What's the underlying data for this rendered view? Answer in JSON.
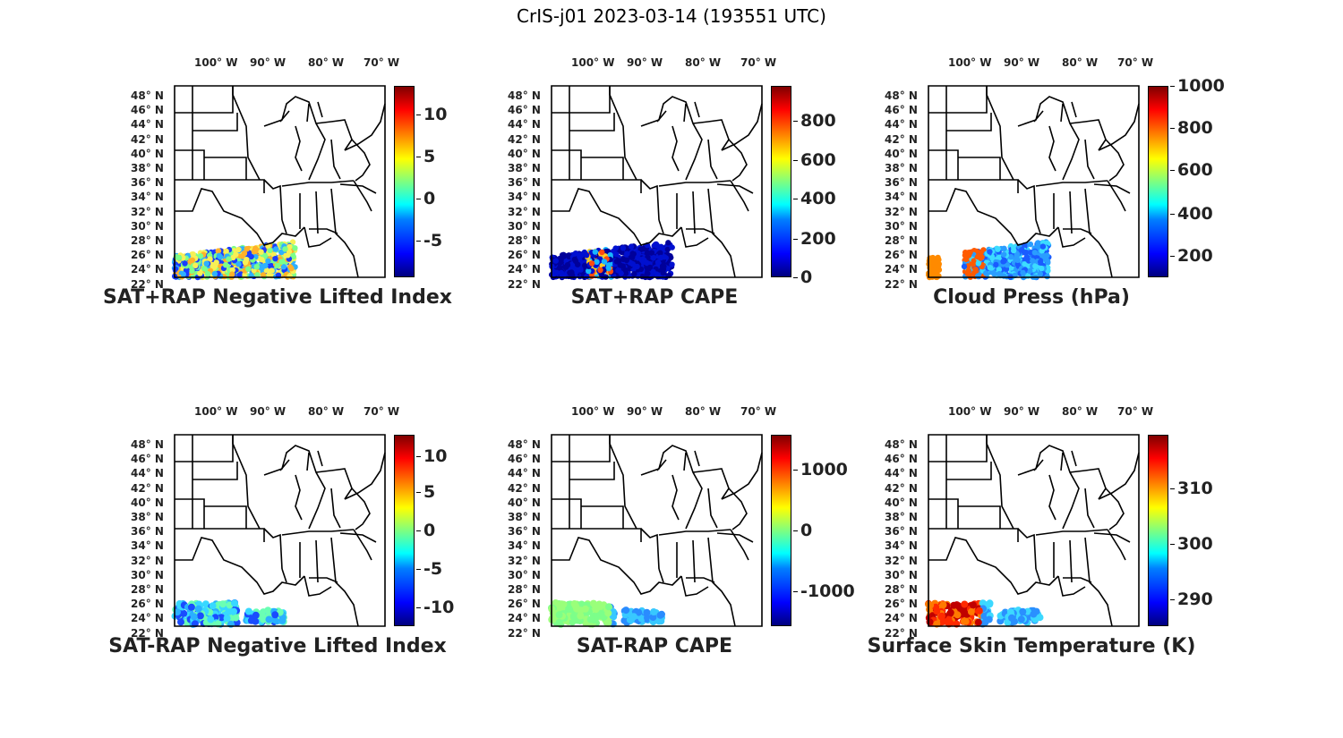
{
  "figure": {
    "title": "CrIS-j01 2023-03-14 (193551 UTC)"
  },
  "lon_labels": [
    "100° W",
    "90° W",
    "80° W",
    "70° W"
  ],
  "lat_labels": [
    "48° N",
    "46° N",
    "44° N",
    "42° N",
    "40° N",
    "38° N",
    "36° N",
    "34° N",
    "32° N",
    "30° N",
    "28° N",
    "26° N",
    "24° N",
    "22° N"
  ],
  "panels": [
    {
      "title": "SAT+RAP Negative Lifted Index",
      "cbar_ticks": [
        "10",
        "5",
        "0",
        "-5"
      ],
      "cbar_levels": [
        0.85,
        0.63,
        0.41,
        0.19
      ],
      "data_color": "swath-mixed",
      "colors": [
        "#1a3cff",
        "#2fb0ff",
        "#7cff8a",
        "#f7f055",
        "#ffb12a"
      ]
    },
    {
      "title": "SAT+RAP CAPE",
      "cbar_ticks": [
        "800",
        "600",
        "400",
        "200",
        "0"
      ],
      "cbar_levels": [
        0.82,
        0.61,
        0.41,
        0.2,
        0.0
      ],
      "data_color": "swath-blue",
      "colors": [
        "#00009a",
        "#0010d0",
        "#18b6ff",
        "#ffcc22",
        "#ff4a10"
      ]
    },
    {
      "title": "Cloud Press (hPa)",
      "cbar_ticks": [
        "1000",
        "800",
        "600",
        "400",
        "200"
      ],
      "cbar_levels": [
        1.0,
        0.78,
        0.56,
        0.33,
        0.11
      ],
      "data_color": "swath-cloud",
      "colors": [
        "#ff8a00",
        "#ff5a00",
        "#1a5cff",
        "#2a9dff",
        "#3cdcff"
      ]
    },
    {
      "title": "SAT-RAP Negative Lifted Index",
      "cbar_ticks": [
        "10",
        "5",
        "0",
        "-5",
        "-10"
      ],
      "cbar_levels": [
        0.89,
        0.7,
        0.5,
        0.3,
        0.1
      ],
      "data_color": "dots-cyan",
      "colors": [
        "#38d8ff",
        "#2ab0ff",
        "#6affb4",
        "#1a4cff"
      ]
    },
    {
      "title": "SAT-RAP CAPE",
      "cbar_ticks": [
        "1000",
        "0",
        "-1000"
      ],
      "cbar_levels": [
        0.82,
        0.5,
        0.18
      ],
      "data_color": "dots-green",
      "colors": [
        "#9aff7a",
        "#7cff8a",
        "#38c8ff",
        "#2a8cff"
      ]
    },
    {
      "title": "Surface Skin Temperature (K)",
      "cbar_ticks": [
        "310",
        "300",
        "290"
      ],
      "cbar_levels": [
        0.72,
        0.43,
        0.14
      ],
      "data_color": "dots-hot",
      "colors": [
        "#c00000",
        "#ff2a00",
        "#ff7a00",
        "#3cd8ff",
        "#2a90ff"
      ]
    }
  ]
}
